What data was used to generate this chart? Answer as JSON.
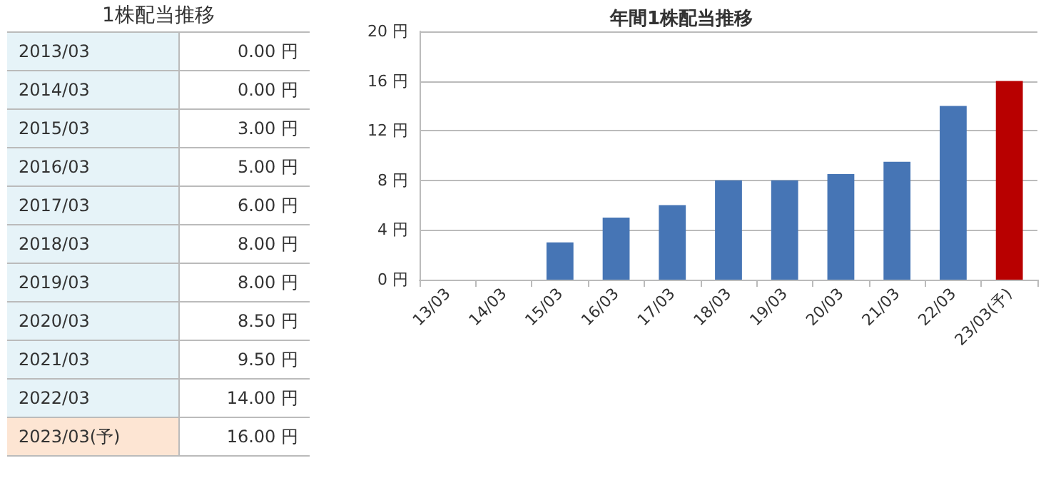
{
  "chart_data": [
    {
      "type": "other",
      "title": "1株配当推移",
      "categories": [
        "2013/03",
        "2014/03",
        "2015/03",
        "2016/03",
        "2017/03",
        "2018/03",
        "2019/03",
        "2020/03",
        "2021/03",
        "2022/03",
        "2023/03(予)"
      ],
      "value_labels": [
        "0.00 円",
        "0.00 円",
        "3.00 円",
        "5.00 円",
        "6.00 円",
        "8.00 円",
        "8.00 円",
        "8.50 円",
        "9.50 円",
        "14.00 円",
        "16.00 円"
      ],
      "colors": [
        "#e6f3f8",
        "#e6f3f8",
        "#e6f3f8",
        "#e6f3f8",
        "#e6f3f8",
        "#e6f3f8",
        "#e6f3f8",
        "#e6f3f8",
        "#e6f3f8",
        "#e6f3f8",
        "#fde5d3"
      ]
    },
    {
      "type": "bar",
      "title": "年間1株配当推移",
      "categories": [
        "13/03",
        "14/03",
        "15/03",
        "16/03",
        "17/03",
        "18/03",
        "19/03",
        "20/03",
        "21/03",
        "22/03",
        "23/03(予)"
      ],
      "values": [
        0,
        0,
        3,
        5,
        6,
        8,
        8,
        8.5,
        9.5,
        14,
        16
      ],
      "colors": [
        "#4675b5",
        "#4675b5",
        "#4675b5",
        "#4675b5",
        "#4675b5",
        "#4675b5",
        "#4675b5",
        "#4675b5",
        "#4675b5",
        "#4675b5",
        "#b80000"
      ],
      "ylim": [
        0,
        20
      ],
      "yticks": [
        {
          "value": 0,
          "label": "0 円"
        },
        {
          "value": 4,
          "label": "4 円"
        },
        {
          "value": 8,
          "label": "8 円"
        },
        {
          "value": 12,
          "label": "12 円"
        },
        {
          "value": 16,
          "label": "16 円"
        },
        {
          "value": 20,
          "label": "20 円"
        }
      ],
      "grid": "y"
    }
  ]
}
